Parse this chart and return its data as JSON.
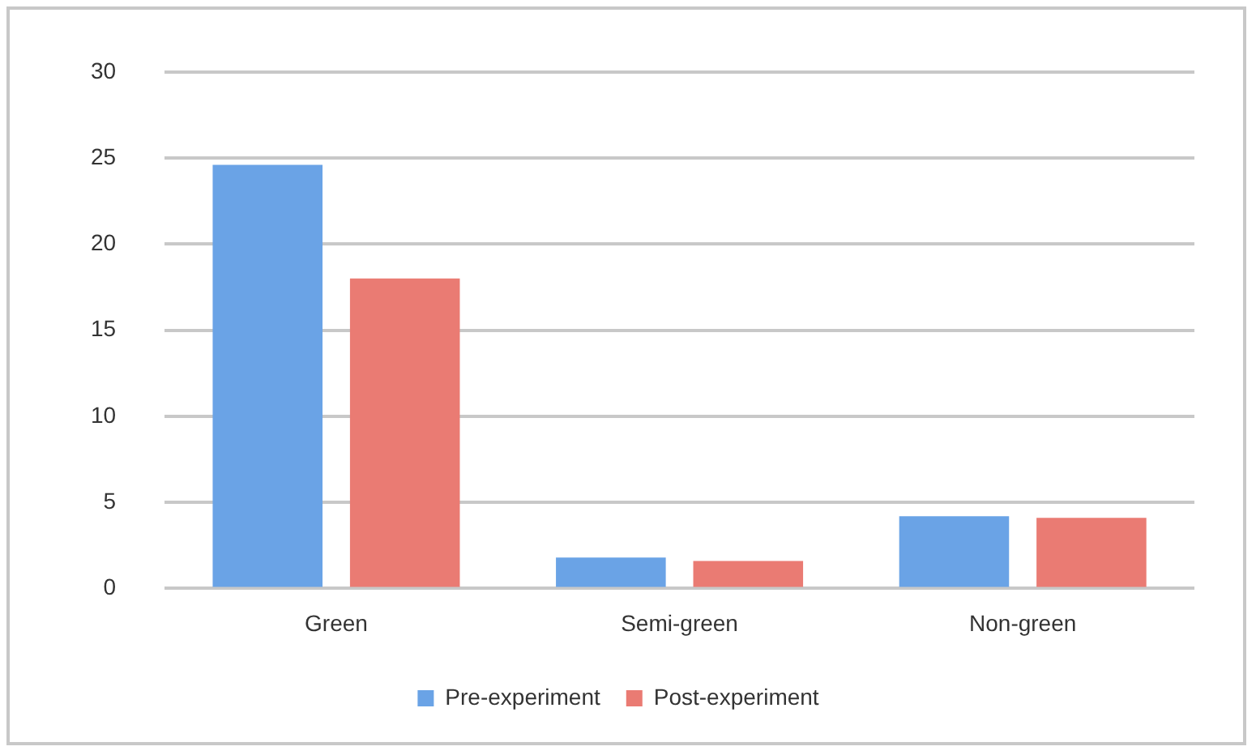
{
  "chart_data": {
    "type": "bar",
    "categories": [
      "Green",
      "Semi-green",
      "Non-green"
    ],
    "series": [
      {
        "name": "Pre-experiment",
        "color": "#6aa3e6",
        "values": [
          24.6,
          1.8,
          4.2
        ]
      },
      {
        "name": "Post-experiment",
        "color": "#ea7b73",
        "values": [
          18,
          1.6,
          4.1
        ]
      }
    ],
    "ylim": [
      0,
      30
    ],
    "yticks": [
      0,
      5,
      10,
      15,
      20,
      25,
      30
    ],
    "grid": "y",
    "legend": "bottom"
  }
}
